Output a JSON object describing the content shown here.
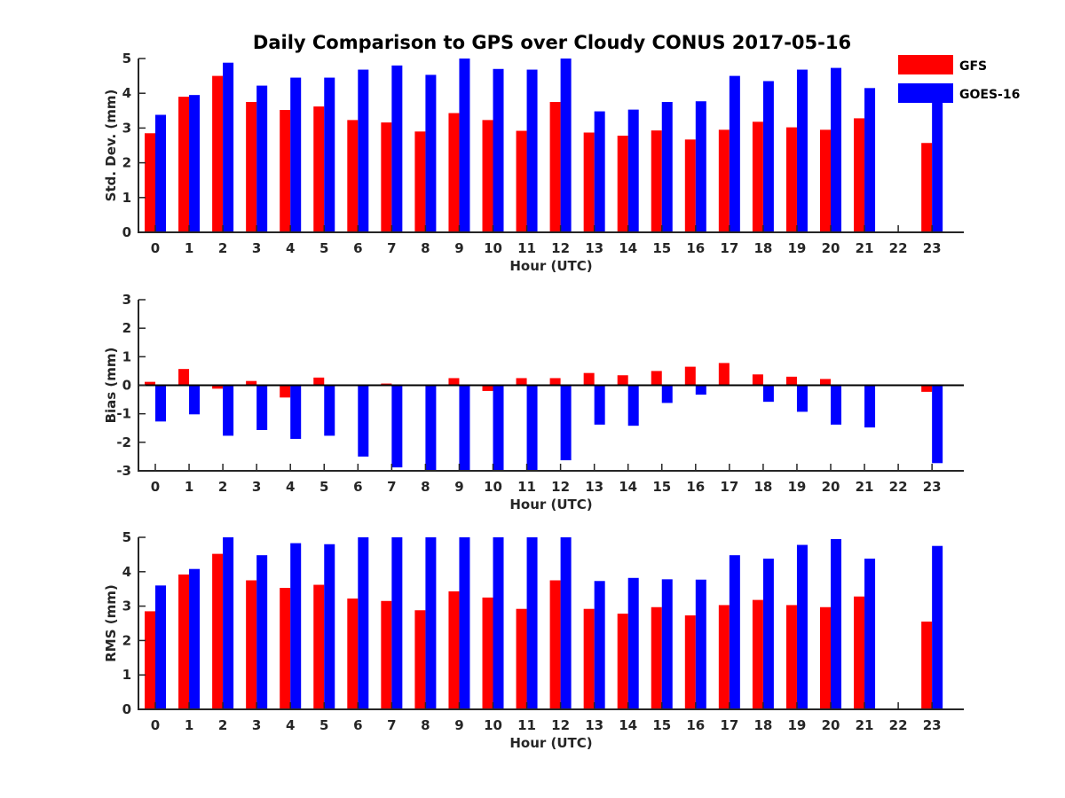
{
  "title": "Daily Comparison to GPS over Cloudy CONUS 2017-05-16",
  "colors": {
    "GFS": "#ff0000",
    "GOES-16": "#0000ff",
    "axis": "#262626"
  },
  "legend": {
    "placement": "top-right",
    "items": [
      "GFS",
      "GOES-16"
    ]
  },
  "chart_data": [
    {
      "type": "bar",
      "title": "Daily Comparison to GPS over Cloudy CONUS 2017-05-16",
      "xlabel": "Hour (UTC)",
      "ylabel": "Std. Dev. (mm)",
      "ylim": [
        0,
        5
      ],
      "yticks": [
        0,
        1,
        2,
        3,
        4,
        5
      ],
      "categories": [
        "0",
        "1",
        "2",
        "3",
        "4",
        "5",
        "6",
        "7",
        "8",
        "9",
        "10",
        "11",
        "12",
        "13",
        "14",
        "15",
        "16",
        "17",
        "18",
        "19",
        "20",
        "21",
        "22",
        "23"
      ],
      "series": [
        {
          "name": "GFS",
          "values": [
            2.85,
            3.9,
            4.5,
            3.75,
            3.52,
            3.62,
            3.23,
            3.16,
            2.9,
            3.43,
            3.23,
            2.92,
            3.75,
            2.87,
            2.78,
            2.93,
            2.67,
            2.95,
            3.18,
            3.02,
            2.95,
            3.28,
            null,
            2.57
          ]
        },
        {
          "name": "GOES-16",
          "values": [
            3.38,
            3.95,
            4.88,
            4.22,
            4.45,
            4.45,
            4.68,
            4.8,
            4.53,
            5.0,
            4.7,
            4.68,
            5.0,
            3.48,
            3.53,
            3.75,
            3.77,
            4.5,
            4.35,
            4.68,
            4.73,
            4.15,
            null,
            4.0
          ]
        }
      ]
    },
    {
      "type": "bar",
      "xlabel": "Hour (UTC)",
      "ylabel": "Bias (mm)",
      "ylim": [
        -3,
        3
      ],
      "yticks": [
        -3,
        -2,
        -1,
        0,
        1,
        2,
        3
      ],
      "categories": [
        "0",
        "1",
        "2",
        "3",
        "4",
        "5",
        "6",
        "7",
        "8",
        "9",
        "10",
        "11",
        "12",
        "13",
        "14",
        "15",
        "16",
        "17",
        "18",
        "19",
        "20",
        "21",
        "22",
        "23"
      ],
      "series": [
        {
          "name": "GFS",
          "values": [
            0.12,
            0.57,
            -0.12,
            0.15,
            -0.43,
            0.27,
            0.03,
            0.06,
            0.0,
            0.25,
            -0.2,
            0.25,
            0.25,
            0.43,
            0.35,
            0.5,
            0.65,
            0.78,
            0.38,
            0.3,
            0.22,
            0.03,
            null,
            -0.23
          ]
        },
        {
          "name": "GOES-16",
          "values": [
            -1.27,
            -1.02,
            -1.77,
            -1.57,
            -1.88,
            -1.77,
            -2.5,
            -2.88,
            -3.0,
            -3.0,
            -3.0,
            -3.0,
            -2.63,
            -1.38,
            -1.42,
            -0.62,
            -0.33,
            0.0,
            -0.58,
            -0.93,
            -1.38,
            -1.48,
            null,
            -2.73
          ]
        }
      ]
    },
    {
      "type": "bar",
      "xlabel": "Hour (UTC)",
      "ylabel": "RMS (mm)",
      "ylim": [
        0,
        5
      ],
      "yticks": [
        0,
        1,
        2,
        3,
        4,
        5
      ],
      "categories": [
        "0",
        "1",
        "2",
        "3",
        "4",
        "5",
        "6",
        "7",
        "8",
        "9",
        "10",
        "11",
        "12",
        "13",
        "14",
        "15",
        "16",
        "17",
        "18",
        "19",
        "20",
        "21",
        "22",
        "23"
      ],
      "series": [
        {
          "name": "GFS",
          "values": [
            2.85,
            3.92,
            4.52,
            3.75,
            3.53,
            3.62,
            3.22,
            3.15,
            2.88,
            3.43,
            3.25,
            2.92,
            3.75,
            2.92,
            2.78,
            2.97,
            2.73,
            3.03,
            3.18,
            3.03,
            2.97,
            3.28,
            null,
            2.55
          ]
        },
        {
          "name": "GOES-16",
          "values": [
            3.6,
            4.08,
            5.0,
            4.48,
            4.83,
            4.8,
            5.0,
            5.0,
            5.0,
            5.0,
            5.0,
            5.0,
            5.0,
            3.73,
            3.82,
            3.78,
            3.77,
            4.48,
            4.38,
            4.78,
            4.95,
            4.38,
            null,
            4.75
          ]
        }
      ]
    }
  ]
}
